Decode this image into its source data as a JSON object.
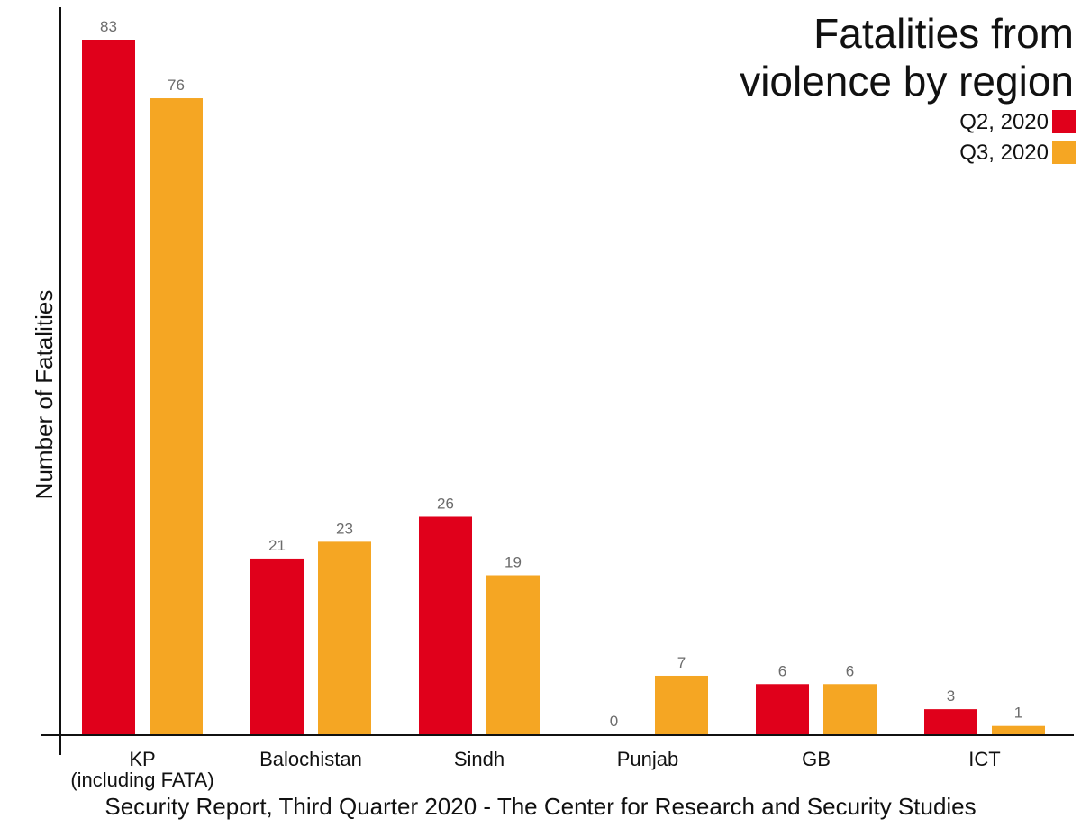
{
  "chart_data": {
    "type": "bar",
    "title_lines": [
      "Fatalities from",
      "violence by region"
    ],
    "ylabel": "Number of Fatalities",
    "xlabel": "",
    "categories": [
      [
        "KP",
        "(including FATA)"
      ],
      [
        "Balochistan"
      ],
      [
        "Sindh"
      ],
      [
        "Punjab"
      ],
      [
        "GB"
      ],
      [
        "ICT"
      ]
    ],
    "series": [
      {
        "name": "Q2, 2020",
        "color": "#e0001b",
        "values": [
          83,
          21,
          26,
          0,
          6,
          3
        ]
      },
      {
        "name": "Q3, 2020",
        "color": "#f5a623",
        "values": [
          76,
          23,
          19,
          7,
          6,
          1
        ]
      }
    ],
    "ylim": [
      0,
      83
    ],
    "grid": false,
    "legend_position": "top-right",
    "source": "Security Report, Third Quarter 2020 - The Center for Research and Security Studies"
  }
}
